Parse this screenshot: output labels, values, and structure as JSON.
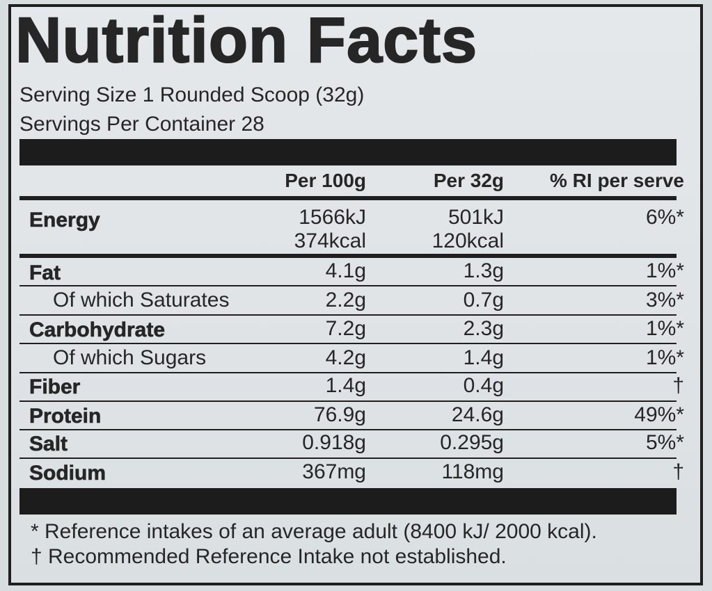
{
  "title": "Nutrition Facts",
  "serving_size": "Serving Size 1 Rounded Scoop (32g)",
  "servings_per_container": "Servings Per Container 28",
  "headers": {
    "per_100g": "Per 100g",
    "per_serving": "Per 32g",
    "ri": "% RI per serve"
  },
  "rows": {
    "energy": {
      "name": "Energy",
      "per_100g": "1566kJ",
      "per_100g_2": "374kcal",
      "per_serving": "501kJ",
      "per_serving_2": "120kcal",
      "ri": "6%*"
    },
    "fat": {
      "name": "Fat",
      "per_100g": "4.1g",
      "per_serving": "1.3g",
      "ri": "1%*"
    },
    "saturates": {
      "name": "Of which Saturates",
      "per_100g": "2.2g",
      "per_serving": "0.7g",
      "ri": "3%*"
    },
    "carbohydrate": {
      "name": "Carbohydrate",
      "per_100g": "7.2g",
      "per_serving": "2.3g",
      "ri": "1%*"
    },
    "sugars": {
      "name": "Of which Sugars",
      "per_100g": "4.2g",
      "per_serving": "1.4g",
      "ri": "1%*"
    },
    "fiber": {
      "name": "Fiber",
      "per_100g": "1.4g",
      "per_serving": "0.4g",
      "ri": "†"
    },
    "protein": {
      "name": "Protein",
      "per_100g": "76.9g",
      "per_serving": "24.6g",
      "ri": "49%*"
    },
    "salt": {
      "name": "Salt",
      "per_100g": "0.918g",
      "per_serving": "0.295g",
      "ri": "5%*"
    },
    "sodium": {
      "name": "Sodium",
      "per_100g": "367mg",
      "per_serving": "118mg",
      "ri": "†"
    }
  },
  "footnotes": {
    "reference": "* Reference intakes of an average adult (8400 kJ/ 2000 kcal).",
    "dagger": "† Recommended Reference Intake not established."
  }
}
